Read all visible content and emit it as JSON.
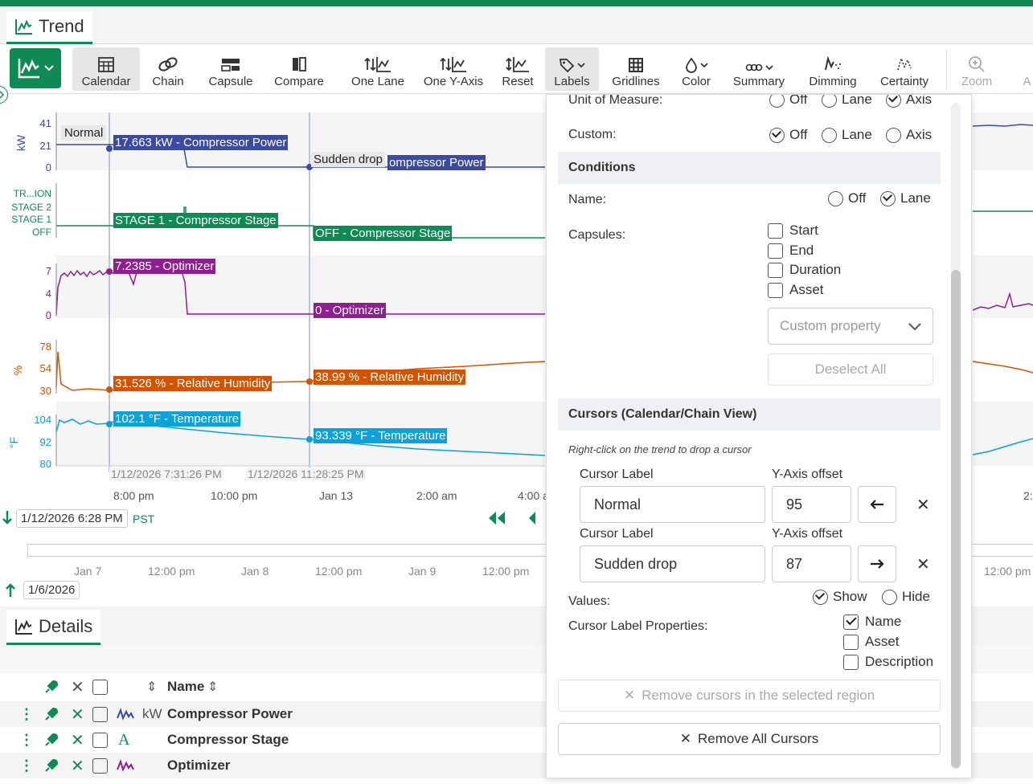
{
  "tab": {
    "label": "Trend"
  },
  "toolbar": {
    "buttons": [
      {
        "label": "Calendar"
      },
      {
        "label": "Chain"
      },
      {
        "label": "Capsule"
      },
      {
        "label": "Compare"
      },
      {
        "label": "One Lane"
      },
      {
        "label": "One Y-Axis"
      },
      {
        "label": "Reset"
      },
      {
        "label": "Labels"
      },
      {
        "label": "Gridlines"
      },
      {
        "label": "Color"
      },
      {
        "label": "Summary"
      },
      {
        "label": "Dimming"
      },
      {
        "label": "Certainty"
      },
      {
        "label": "Zoom"
      },
      {
        "label": "A"
      }
    ]
  },
  "chart": {
    "lanes": [
      {
        "unit": "kW",
        "ticks": [
          "41",
          "21",
          "0"
        ]
      },
      {
        "unit": "",
        "ticks": [
          "TR...ION",
          "STAGE 2",
          "STAGE 1",
          "OFF"
        ]
      },
      {
        "unit": "",
        "ticks": [
          "7",
          "4",
          "0"
        ]
      },
      {
        "unit": "%",
        "ticks": [
          "78",
          "54",
          "30"
        ]
      },
      {
        "unit": "°F",
        "ticks": [
          "104",
          "92",
          "80"
        ]
      }
    ],
    "cursor_names": [
      "Normal",
      "Sudden drop"
    ],
    "labels": {
      "c1_power": "17.663 kW - Compressor Power",
      "c2_power": "ompressor Power",
      "c1_stage": "STAGE 1 - Compressor Stage",
      "c2_stage": "OFF - Compressor Stage",
      "c1_opt": "7.2385 - Optimizer",
      "c2_opt": "0 - Optimizer",
      "c1_rh": "31.526 % - Relative Humidity",
      "c2_rh": "38.99 % - Relative Humidity",
      "c1_temp": "102.1 °F - Temperature",
      "c2_temp": "93.339 °F - Temperature"
    },
    "cursor_times": [
      "1/12/2026 7:31:26 PM",
      "1/12/2026 11:28:25 PM"
    ],
    "xticks": [
      "8:00 pm",
      "10:00 pm",
      "Jan 13",
      "2:00 am",
      "4:00 a"
    ],
    "right_xtick": "2:",
    "colors": {
      "power": "#3c4ba0",
      "stage": "#0f8a54",
      "optimizer": "#8e1f8e",
      "rh": "#d35400",
      "temp": "#0aa2d8"
    }
  },
  "nav": {
    "start": "1/12/2026 6:28 PM",
    "tz": "PST"
  },
  "overview": {
    "ticks": [
      "Jan 7",
      "12:00 pm",
      "Jan 8",
      "12:00 pm",
      "Jan 9",
      "12:00 pm"
    ],
    "right_tick": "12:00 pm",
    "start": "1/6/2026"
  },
  "details": {
    "tab": "Details",
    "header_name": "Name",
    "rows": [
      {
        "unit": "kW",
        "name": "Compressor Power"
      },
      {
        "unit": "",
        "name": "Compressor Stage"
      },
      {
        "unit": "",
        "name": "Optimizer"
      }
    ]
  },
  "panel": {
    "cut_row_label": "Unit of Measure:",
    "cut_options": [
      "Off",
      "Lane",
      "Axis"
    ],
    "custom_label": "Custom:",
    "custom_options": [
      "Off",
      "Lane",
      "Axis"
    ],
    "conditions_title": "Conditions",
    "name_label": "Name:",
    "name_options": [
      "Off",
      "Lane"
    ],
    "capsules_label": "Capsules:",
    "capsule_options": [
      "Start",
      "End",
      "Duration",
      "Asset"
    ],
    "custom_property_placeholder": "Custom property",
    "deselect_all": "Deselect All",
    "cursors_title": "Cursors (Calendar/Chain View)",
    "cursors_hint": "Right-click on the trend to drop a cursor",
    "cursor_label_header": "Cursor Label",
    "yaxis_offset_header": "Y-Axis offset",
    "cursors": [
      {
        "label": "Normal",
        "offset": "95"
      },
      {
        "label": "Sudden drop",
        "offset": "87"
      }
    ],
    "values_label": "Values:",
    "values_options": [
      "Show",
      "Hide"
    ],
    "cursor_props_label": "Cursor Label Properties:",
    "cursor_props": [
      "Name",
      "Asset",
      "Description"
    ],
    "remove_region": "Remove cursors in the selected region",
    "remove_all": "Remove All Cursors"
  }
}
